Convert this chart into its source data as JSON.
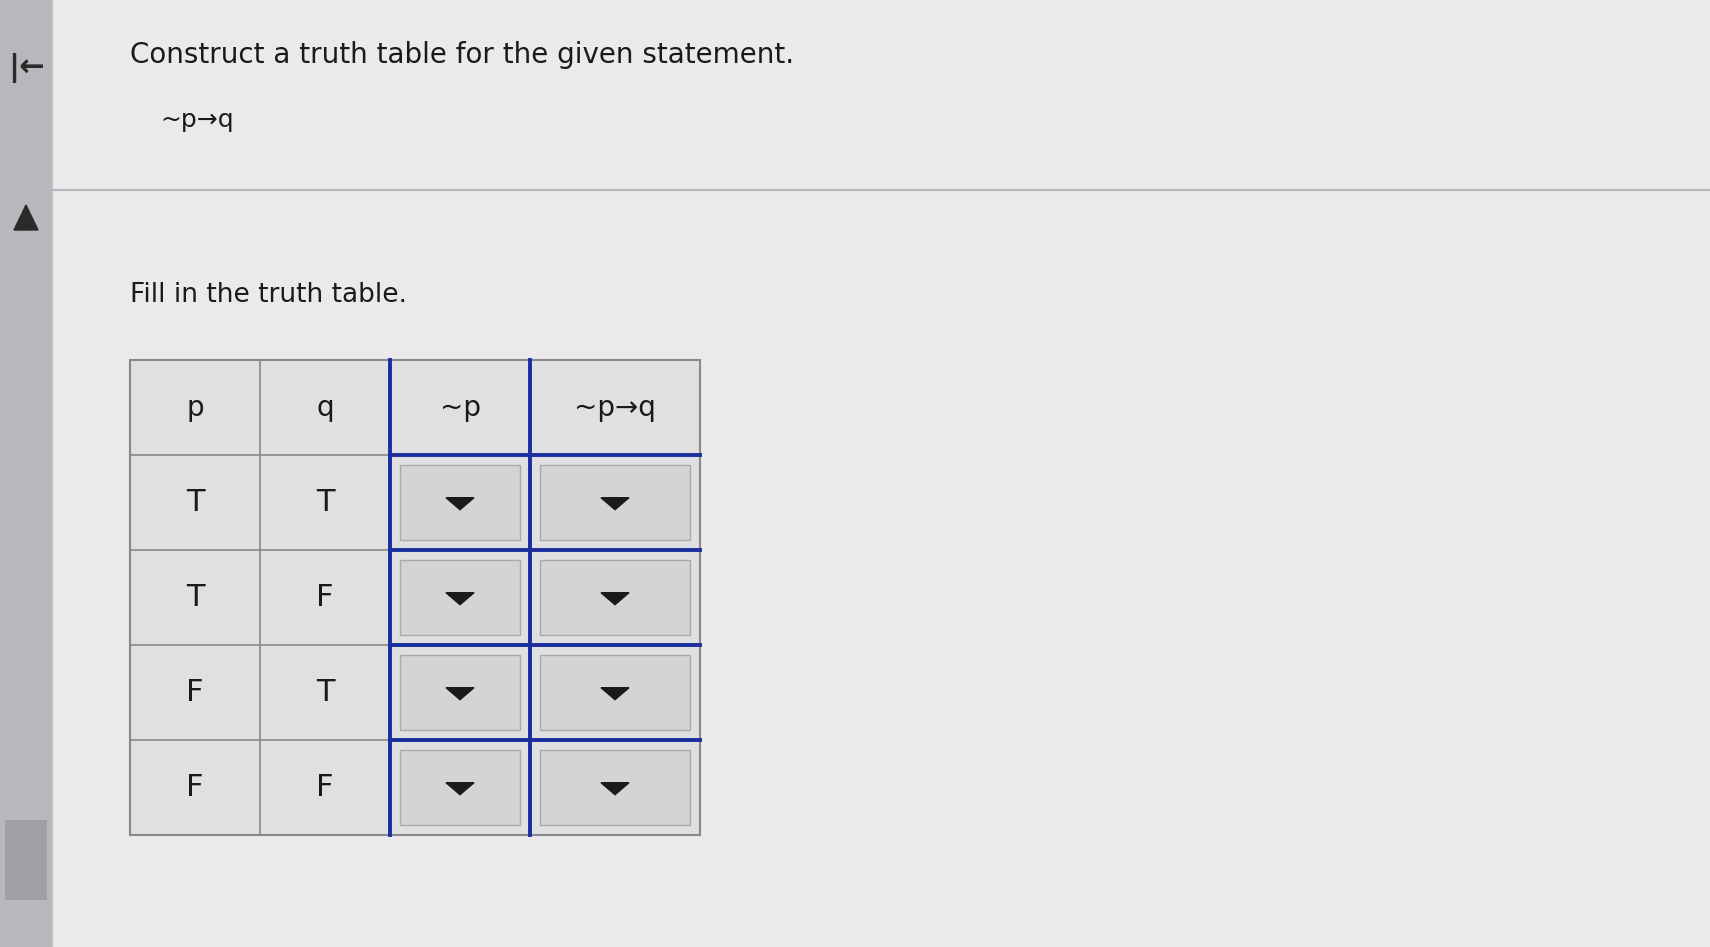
{
  "title": "Construct a truth table for the given statement.",
  "subtitle": "~p→q",
  "fill_text": "Fill in the truth table.",
  "bg_color": "#e8e8ea",
  "sidebar_color": "#c8c8cc",
  "content_bg": "#e8e8ea",
  "table_bg": "#e0e0e2",
  "cell_bg": "#e8e8ea",
  "headers": [
    "p",
    "q",
    "~p",
    "~p→q"
  ],
  "rows": [
    [
      "T",
      "T"
    ],
    [
      "T",
      "F"
    ],
    [
      "F",
      "T"
    ],
    [
      "F",
      "F"
    ]
  ],
  "dropdown_color": "#1a2e9e",
  "dropdown_box_bg": "#d8d8da",
  "text_color": "#1a1a1a",
  "title_fontsize": 20,
  "subtitle_fontsize": 18,
  "fill_fontsize": 19,
  "cell_fontsize": 22,
  "header_fontsize": 20
}
